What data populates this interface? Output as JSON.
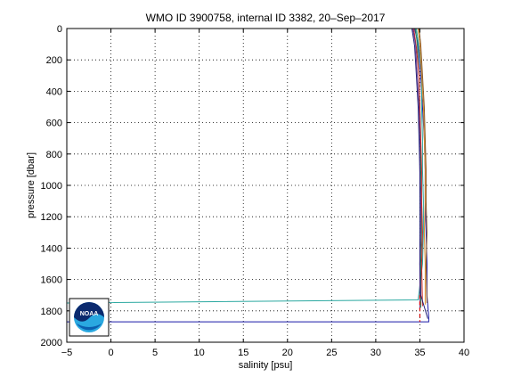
{
  "chart_data": {
    "type": "line",
    "title": "WMO ID 3900758, internal ID 3382, 20–Sep–2017",
    "xlabel": "salinity [psu]",
    "ylabel": "pressure [dbar]",
    "xlim": [
      -5,
      40
    ],
    "ylim": [
      0,
      2000
    ],
    "y_reversed": true,
    "grid": true,
    "x_ticks": [
      "−5",
      "0",
      "5",
      "10",
      "15",
      "20",
      "25",
      "30",
      "35",
      "40"
    ],
    "y_ticks": [
      "0",
      "200",
      "400",
      "600",
      "800",
      "1000",
      "1200",
      "1400",
      "1600",
      "1800",
      "2000"
    ],
    "colors": {
      "profile_blue": "#1a1aa8",
      "profile_darkblue": "#22227a",
      "profile_green": "#2e8b57",
      "profile_red": "#cc2222",
      "profile_orange": "#d98c2a",
      "profile_purple": "#6a3a8a",
      "profile_teal": "#2aa8a0",
      "profile_brown": "#8a5a2a",
      "vertical_dashed_red": "#dd0000"
    },
    "series": [
      {
        "color": "#1a1aa8",
        "x": [
          34.4,
          34.8,
          35.1,
          35.3,
          35.5,
          35.6,
          35.6,
          35.7,
          35.8,
          35.8,
          36.0,
          36.0,
          -5
        ],
        "y": [
          0,
          100,
          300,
          500,
          700,
          900,
          1100,
          1300,
          1500,
          1700,
          1840,
          1870,
          1870
        ]
      },
      {
        "color": "#2aa8a0",
        "x": [
          34.6,
          34.9,
          35.2,
          35.2,
          35.3,
          35.3,
          35.4,
          35.4,
          35.3,
          34.8,
          -5
        ],
        "y": [
          0,
          120,
          300,
          500,
          700,
          900,
          1100,
          1300,
          1500,
          1730,
          1750
        ]
      },
      {
        "color": "#2e8b57",
        "x": [
          34.5,
          34.7,
          34.9,
          35.0,
          35.1,
          35.1,
          35.2,
          35.2,
          35.1,
          35.1
        ],
        "y": [
          0,
          100,
          300,
          500,
          700,
          900,
          1100,
          1300,
          1500,
          1780
        ]
      },
      {
        "color": "#d98c2a",
        "x": [
          34.8,
          35.0,
          35.2,
          35.4,
          35.5,
          35.6,
          35.6,
          35.5,
          35.6,
          35.6
        ],
        "y": [
          0,
          100,
          300,
          500,
          700,
          900,
          1100,
          1300,
          1500,
          1760
        ]
      },
      {
        "color": "#cc2222",
        "x": [
          34.3,
          34.6,
          34.9,
          35.0,
          35.1,
          35.2,
          35.2,
          35.3,
          35.2,
          35.3
        ],
        "y": [
          0,
          120,
          300,
          500,
          700,
          900,
          1100,
          1300,
          1500,
          1770
        ]
      },
      {
        "color": "#6a3a8a",
        "x": [
          34.2,
          34.5,
          34.7,
          34.9,
          35.0,
          35.0,
          35.1,
          35.1,
          35.0,
          35.0
        ],
        "y": [
          0,
          100,
          300,
          500,
          700,
          900,
          1100,
          1300,
          1500,
          1790
        ]
      },
      {
        "color": "#8a5a2a",
        "x": [
          34.9,
          35.1,
          35.3,
          35.5,
          35.6,
          35.7,
          35.7,
          35.8,
          35.7,
          35.8
        ],
        "y": [
          0,
          100,
          300,
          500,
          700,
          900,
          1100,
          1300,
          1500,
          1750
        ]
      },
      {
        "color": "#22227a",
        "x": [
          34.1,
          34.4,
          34.6,
          34.8,
          34.9,
          35.0,
          35.0,
          35.0,
          35.0,
          35.1,
          35.9
        ],
        "y": [
          0,
          110,
          300,
          500,
          700,
          900,
          1100,
          1300,
          1500,
          1700,
          1850
        ]
      }
    ],
    "reference_line": {
      "x": 35.0,
      "y_range": [
        1700,
        1870
      ],
      "style": "dashed",
      "color": "#dd0000"
    }
  },
  "logo": {
    "text": "NOAA"
  }
}
